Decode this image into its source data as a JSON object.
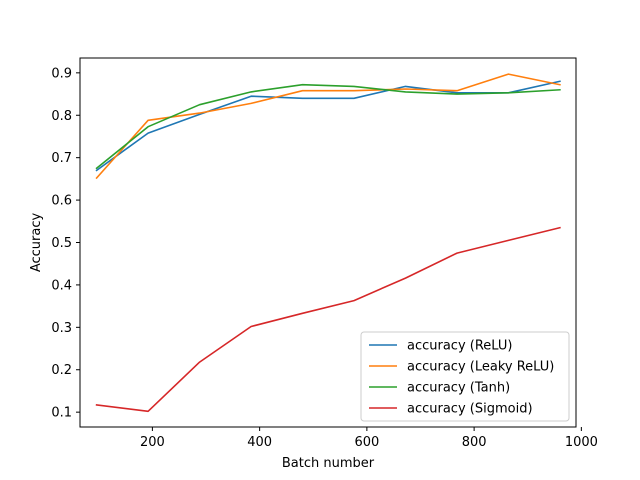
{
  "chart_data": {
    "type": "line",
    "title": "",
    "xlabel": "Batch number",
    "ylabel": "Accuracy",
    "xlim": [
      65,
      990
    ],
    "ylim": [
      0.065,
      0.935
    ],
    "xticks": [
      200,
      400,
      600,
      800,
      1000
    ],
    "xtick_labels": [
      "200",
      "400",
      "600",
      "800",
      "1000"
    ],
    "yticks": [
      0.1,
      0.2,
      0.3,
      0.4,
      0.5,
      0.6,
      0.7,
      0.8,
      0.9
    ],
    "ytick_labels": [
      "0.1",
      "0.2",
      "0.3",
      "0.4",
      "0.5",
      "0.6",
      "0.7",
      "0.8",
      "0.9"
    ],
    "grid": false,
    "legend_position": "bottom-right",
    "x": [
      96,
      192,
      288,
      384,
      480,
      576,
      672,
      768,
      864,
      960
    ],
    "series": [
      {
        "name": "accuracy (ReLU)",
        "color": "#1f77b4",
        "values": [
          0.67,
          0.758,
          0.802,
          0.845,
          0.84,
          0.84,
          0.868,
          0.853,
          0.853,
          0.88
        ]
      },
      {
        "name": "accuracy (Leaky ReLU)",
        "color": "#ff7f0e",
        "values": [
          0.652,
          0.788,
          0.805,
          0.828,
          0.858,
          0.858,
          0.862,
          0.858,
          0.897,
          0.872
        ]
      },
      {
        "name": "accuracy (Tanh)",
        "color": "#2ca02c",
        "values": [
          0.675,
          0.773,
          0.825,
          0.855,
          0.872,
          0.868,
          0.855,
          0.85,
          0.853,
          0.86
        ]
      },
      {
        "name": "accuracy (Sigmoid)",
        "color": "#d62728",
        "values": [
          0.117,
          0.102,
          0.218,
          0.302,
          0.333,
          0.363,
          0.416,
          0.475,
          0.505,
          0.535
        ]
      }
    ]
  }
}
